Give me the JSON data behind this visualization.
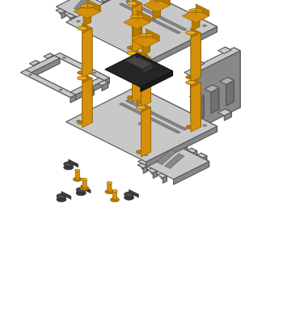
{
  "bg_color": "#ffffff",
  "gray_light": "#c8c8c8",
  "gray_mid": "#aaaaaa",
  "gray_dark": "#888888",
  "gray_edge": "#555555",
  "gold_bright": "#d4900a",
  "gold_mid": "#b87a00",
  "gold_dark": "#8a5c00",
  "gold_top": "#e8a820"
}
